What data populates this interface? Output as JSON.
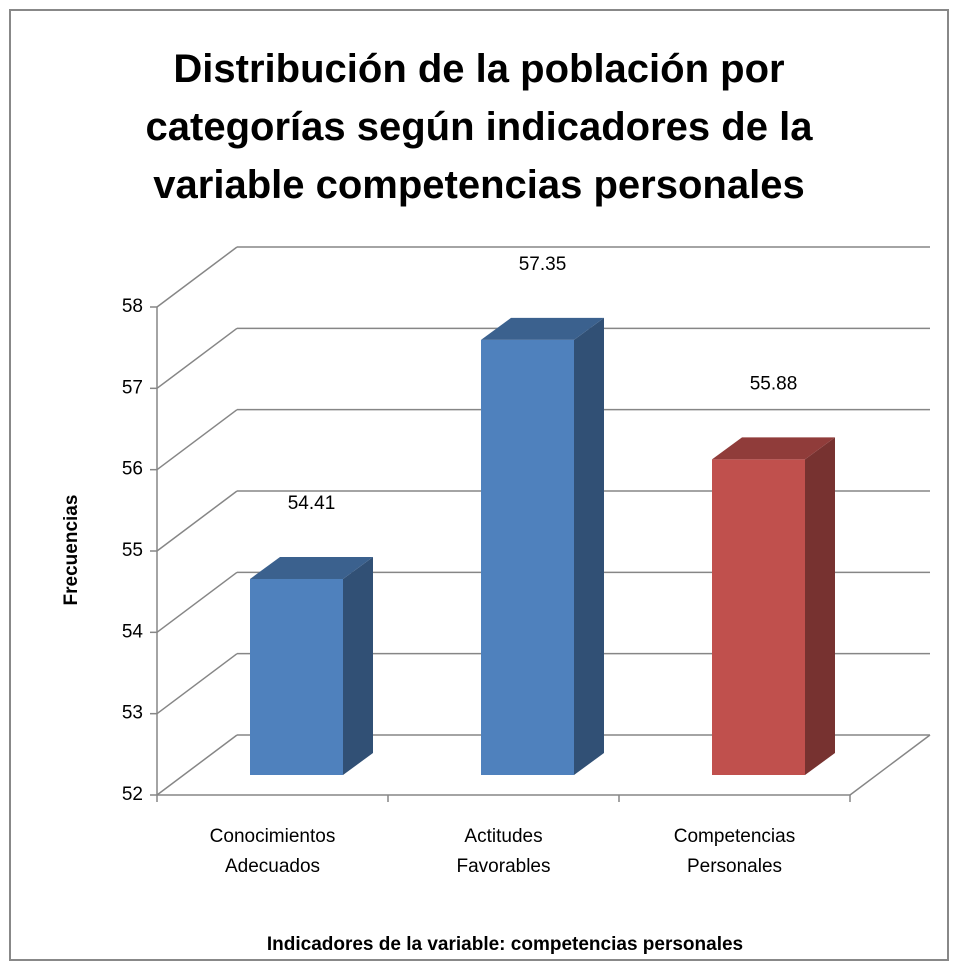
{
  "chart_data": {
    "type": "bar3d",
    "title": "Distribución de la población por categorías según indicadores de la variable competencias personales",
    "y_label": "Frecuencias",
    "x_label": "Indicadores de la variable: competencias personales",
    "categories": [
      "Conocimientos Adecuados",
      "Actitudes Favorables",
      "Competencias Personales"
    ],
    "values": [
      54.41,
      57.35,
      55.88
    ],
    "colors": [
      "#4f81bd",
      "#4f81bd",
      "#c0504d"
    ],
    "ylim": [
      52,
      58
    ],
    "yticks": [
      52,
      53,
      54,
      55,
      56,
      57,
      58
    ],
    "grid": true
  }
}
